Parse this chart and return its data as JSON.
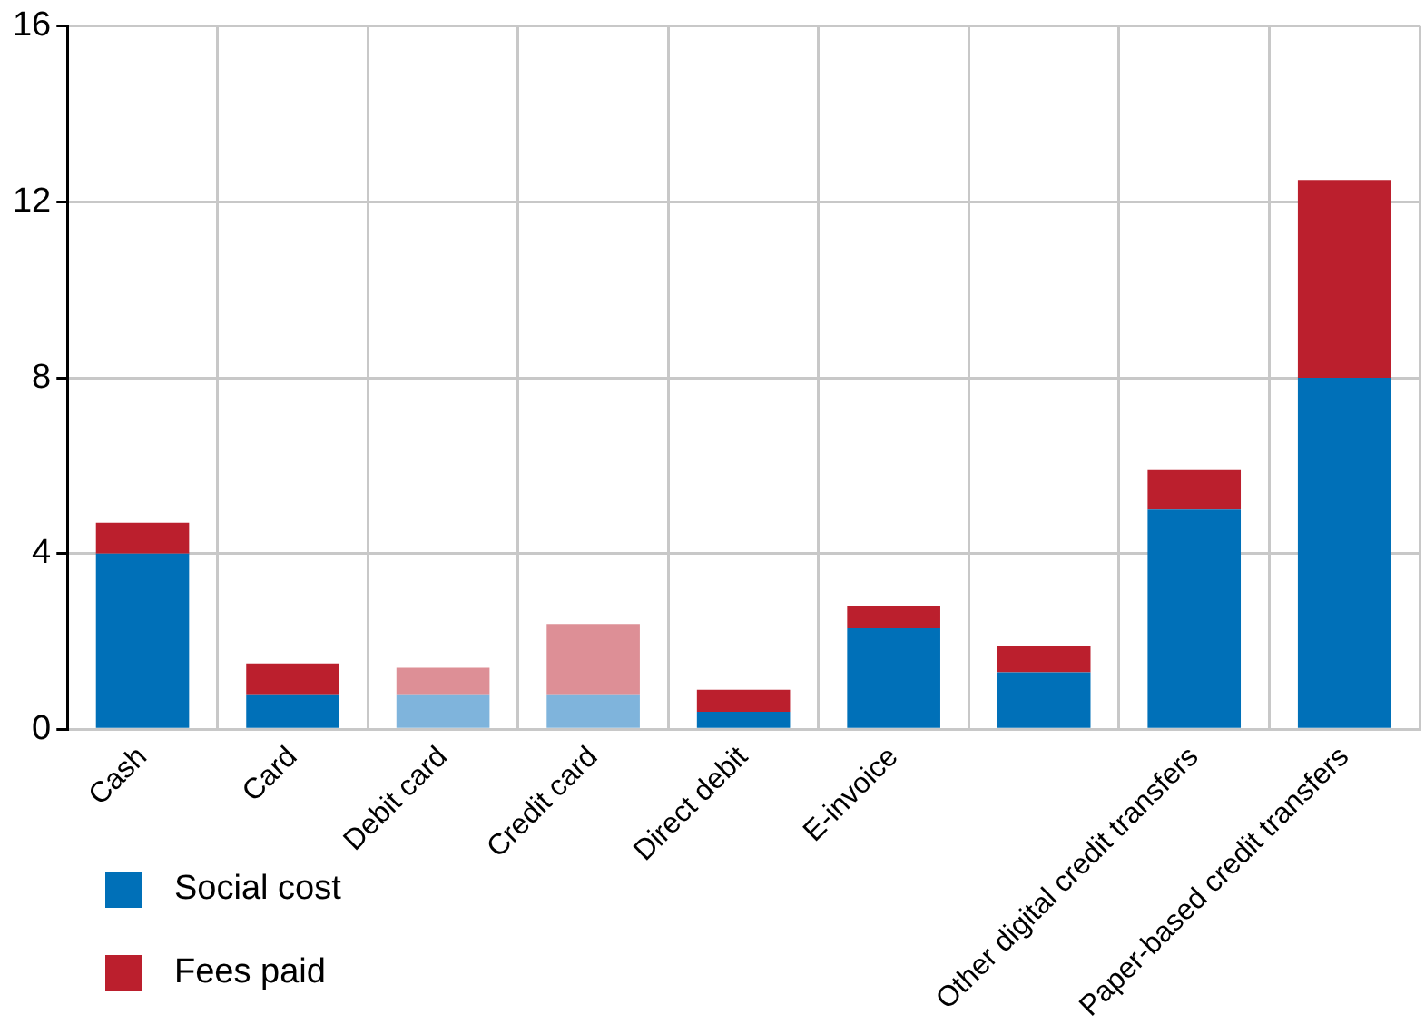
{
  "chart_data": {
    "type": "bar",
    "stacked": true,
    "categories": [
      "Cash",
      "Card",
      "Debit card",
      "Credit card",
      "Direct debit",
      "E-invoice",
      null,
      "Other digital credit transfers",
      "Paper-based credit transfers"
    ],
    "series": [
      {
        "name": "Social cost",
        "color": "#0070b8",
        "colors": [
          "#0070b8",
          "#0070b8",
          "#7fb4dc",
          "#7fb4dc",
          "#0070b8",
          "#0070b8",
          "#0070b8",
          "#0070b8",
          "#0070b8"
        ],
        "values": [
          4.0,
          0.8,
          0.8,
          0.8,
          0.4,
          2.3,
          1.3,
          5.0,
          8.0
        ]
      },
      {
        "name": "Fees paid",
        "color": "#bb1f2d",
        "colors": [
          "#bb1f2d",
          "#bb1f2d",
          "#dd8f96",
          "#dd8f96",
          "#bb1f2d",
          "#bb1f2d",
          "#bb1f2d",
          "#bb1f2d",
          "#bb1f2d"
        ],
        "values": [
          0.7,
          0.7,
          0.6,
          1.6,
          0.5,
          0.5,
          0.6,
          0.9,
          4.5
        ]
      }
    ],
    "ylim": [
      0,
      16
    ],
    "yticks": [
      0,
      4,
      8,
      12,
      16
    ],
    "grid": true,
    "legend": "bottom left"
  }
}
